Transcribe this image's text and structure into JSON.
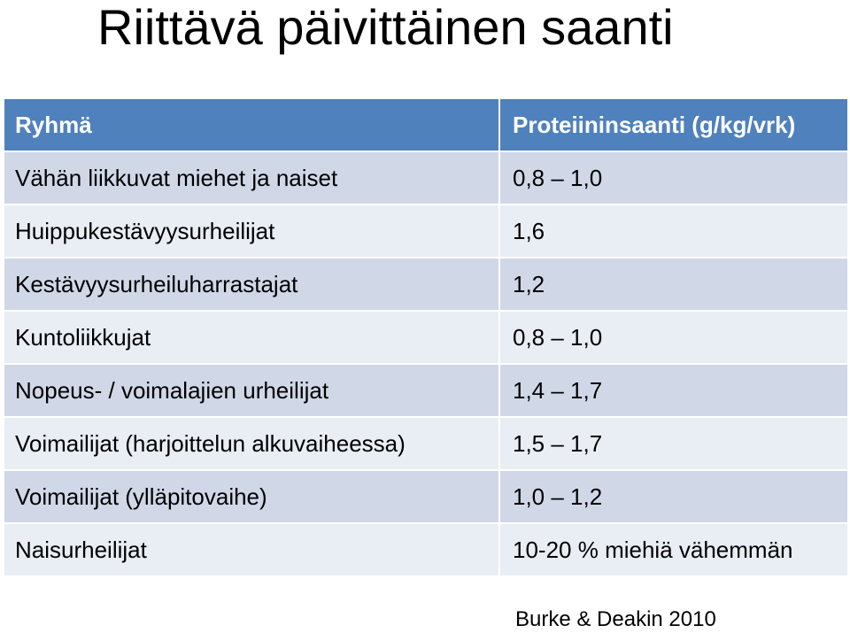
{
  "title": "Riittävä päivittäinen saanti",
  "table": {
    "headers": [
      "Ryhmä",
      "Proteiininsaanti (g/kg/vrk)"
    ],
    "rows": [
      [
        "Vähän liikkuvat miehet ja naiset",
        "0,8 – 1,0"
      ],
      [
        "Huippukestävyysurheilijat",
        "1,6"
      ],
      [
        "Kestävyysurheiluharrastajat",
        "1,2"
      ],
      [
        "Kuntoliikkujat",
        "0,8 – 1,0"
      ],
      [
        "Nopeus- / voimalajien urheilijat",
        "1,4 – 1,7"
      ],
      [
        "Voimailijat (harjoittelun alkuvaiheessa)",
        "1,5 – 1,7"
      ],
      [
        "Voimailijat (ylläpitovaihe)",
        "1,0 – 1,2"
      ],
      [
        "Naisurheilijat",
        "10-20 % miehiä vähemmän"
      ]
    ]
  },
  "citation": "Burke & Deakin 2010",
  "colors": {
    "header_bg": "#4f81bd",
    "row_odd_bg": "#d0d8e8",
    "row_even_bg": "#e9edf4"
  }
}
